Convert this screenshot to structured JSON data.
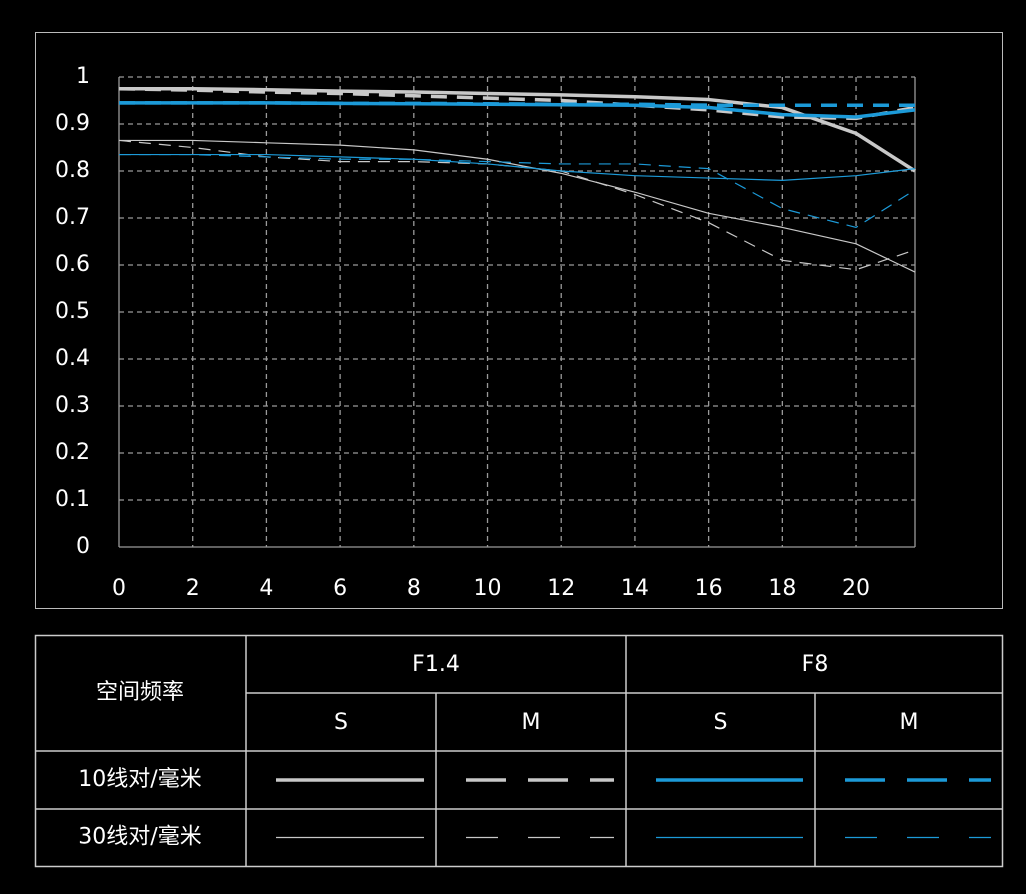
{
  "chart_data": {
    "type": "line",
    "x": [
      0,
      2,
      4,
      6,
      8,
      10,
      12,
      14,
      16,
      18,
      20,
      21.6
    ],
    "xlim": [
      0,
      21.6
    ],
    "xticks": [
      0,
      2,
      4,
      6,
      8,
      10,
      12,
      14,
      16,
      18,
      20
    ],
    "ylim": [
      0,
      1
    ],
    "yticks": [
      0,
      0.1,
      0.2,
      0.3,
      0.4,
      0.5,
      0.6,
      0.7,
      0.8,
      0.9,
      1
    ],
    "grid": true,
    "series": [
      {
        "color": "#c8c8c8",
        "width": 3.5,
        "style": "solid",
        "values": [
          0.975,
          0.975,
          0.973,
          0.97,
          0.968,
          0.965,
          0.962,
          0.958,
          0.952,
          0.935,
          0.88,
          0.8
        ]
      },
      {
        "color": "#c8c8c8",
        "width": 3.5,
        "style": "dashed",
        "values": [
          0.975,
          0.972,
          0.968,
          0.965,
          0.96,
          0.955,
          0.95,
          0.94,
          0.93,
          0.915,
          0.912,
          0.935
        ]
      },
      {
        "color": "#1c9ad8",
        "width": 3.5,
        "style": "solid",
        "values": [
          0.945,
          0.945,
          0.945,
          0.944,
          0.943,
          0.942,
          0.941,
          0.94,
          0.935,
          0.92,
          0.915,
          0.93
        ]
      },
      {
        "color": "#1c9ad8",
        "width": 3.5,
        "style": "dashed",
        "values": [
          0.945,
          0.945,
          0.945,
          0.944,
          0.944,
          0.943,
          0.942,
          0.942,
          0.94,
          0.94,
          0.94,
          0.94
        ]
      },
      {
        "color": "#c8c8c8",
        "width": 1.2,
        "style": "solid",
        "values": [
          0.865,
          0.865,
          0.86,
          0.855,
          0.845,
          0.825,
          0.795,
          0.755,
          0.71,
          0.68,
          0.645,
          0.585
        ]
      },
      {
        "color": "#c8c8c8",
        "width": 1.2,
        "style": "dashed",
        "values": [
          0.865,
          0.85,
          0.83,
          0.82,
          0.82,
          0.815,
          0.8,
          0.75,
          0.69,
          0.61,
          0.59,
          0.632
        ]
      },
      {
        "color": "#1c9ad8",
        "width": 1.2,
        "style": "solid",
        "values": [
          0.835,
          0.835,
          0.835,
          0.83,
          0.825,
          0.815,
          0.8,
          0.79,
          0.785,
          0.78,
          0.79,
          0.805
        ]
      },
      {
        "color": "#1c9ad8",
        "width": 1.2,
        "style": "dashed",
        "values": [
          0.835,
          0.835,
          0.83,
          0.825,
          0.825,
          0.82,
          0.815,
          0.815,
          0.805,
          0.72,
          0.68,
          0.76
        ]
      }
    ]
  },
  "table": {
    "corner": "空间频率",
    "groups": [
      "F1.4",
      "F8"
    ],
    "subheaders": [
      "S",
      "M",
      "S",
      "M"
    ],
    "rows": [
      "10线对/毫米",
      "30线对/毫米"
    ]
  }
}
